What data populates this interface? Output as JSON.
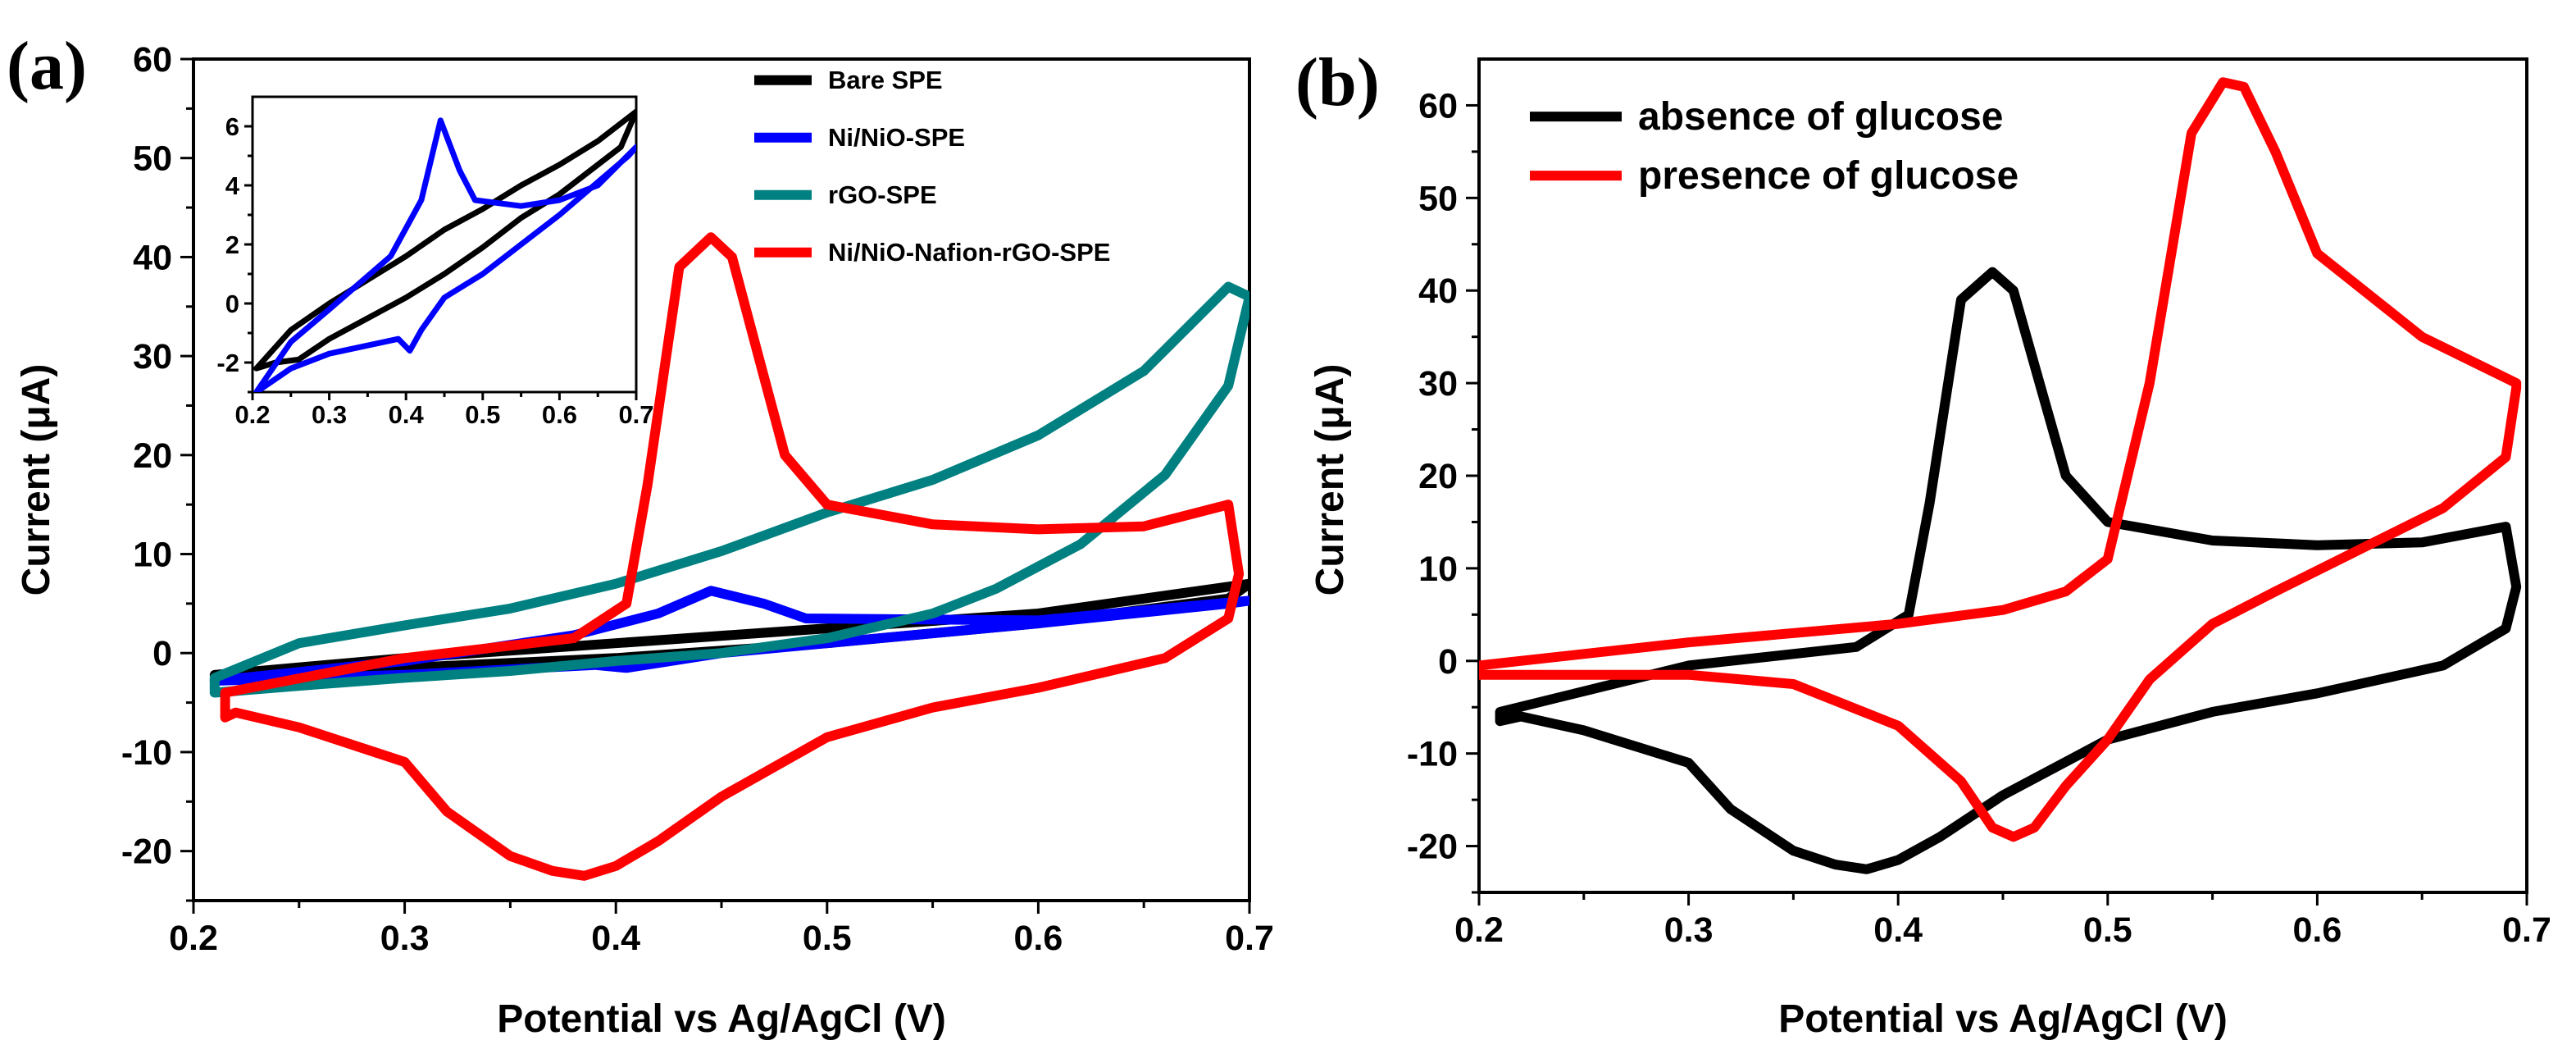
{
  "chart_data": [
    {
      "panel": "(a)",
      "type": "line",
      "xlabel": "Potential vs Ag/AgCl (V)",
      "ylabel": "Current (μA)",
      "xlim": [
        0.2,
        0.7
      ],
      "ylim": [
        -25,
        60
      ],
      "xticks": [
        "0.2",
        "0.3",
        "0.4",
        "0.5",
        "0.6",
        "0.7"
      ],
      "yticks": [
        "-20",
        "-10",
        "0",
        "10",
        "20",
        "30",
        "40",
        "50",
        "60"
      ],
      "legend_position": "top-right",
      "series": [
        {
          "name": "Bare SPE",
          "color": "#000000",
          "x": [
            0.21,
            0.3,
            0.4,
            0.5,
            0.6,
            0.7,
            0.69,
            0.6,
            0.5,
            0.4,
            0.3,
            0.21
          ],
          "y": [
            -2.2,
            -0.5,
            1.0,
            2.5,
            4.0,
            7.0,
            5.5,
            3.0,
            1.0,
            -0.5,
            -1.5,
            -2.2
          ]
        },
        {
          "name": "Ni/NiO-SPE",
          "color": "#0000ff",
          "x": [
            0.21,
            0.3,
            0.38,
            0.42,
            0.445,
            0.47,
            0.49,
            0.6,
            0.7,
            0.69,
            0.6,
            0.5,
            0.45,
            0.42,
            0.405,
            0.39,
            0.3,
            0.21
          ],
          "y": [
            -2.8,
            -0.8,
            1.8,
            4.0,
            6.3,
            5.0,
            3.5,
            3.3,
            5.3,
            5.0,
            3.0,
            1.0,
            0.0,
            -1.0,
            -1.5,
            -1.2,
            -2.2,
            -2.8
          ]
        },
        {
          "name": "rGO-SPE",
          "color": "#008080",
          "x": [
            0.21,
            0.25,
            0.3,
            0.35,
            0.4,
            0.45,
            0.5,
            0.55,
            0.6,
            0.65,
            0.69,
            0.7,
            0.69,
            0.66,
            0.62,
            0.58,
            0.55,
            0.5,
            0.45,
            0.4,
            0.35,
            0.3,
            0.25,
            0.21
          ],
          "y": [
            -2.5,
            1.0,
            2.8,
            4.5,
            7.0,
            10.3,
            14.2,
            17.5,
            22.0,
            28.5,
            37.0,
            36.0,
            27.0,
            18.0,
            11.0,
            6.5,
            4.0,
            1.5,
            0.0,
            -0.8,
            -1.8,
            -2.5,
            -3.3,
            -4.0
          ]
        },
        {
          "name": "Ni/NiO-Nafion-rGO-SPE",
          "color": "#ff0000",
          "x": [
            0.215,
            0.3,
            0.38,
            0.405,
            0.415,
            0.43,
            0.445,
            0.455,
            0.47,
            0.48,
            0.5,
            0.55,
            0.6,
            0.65,
            0.69,
            0.695,
            0.69,
            0.66,
            0.6,
            0.55,
            0.5,
            0.45,
            0.42,
            0.4,
            0.385,
            0.37,
            0.35,
            0.32,
            0.3,
            0.25,
            0.22,
            0.215
          ],
          "y": [
            -4.0,
            -0.5,
            1.5,
            5.0,
            17.0,
            39.0,
            42.0,
            40.0,
            28.0,
            20.0,
            15.0,
            13.0,
            12.5,
            12.8,
            15.0,
            8.0,
            3.5,
            -0.5,
            -3.5,
            -5.5,
            -8.5,
            -14.5,
            -19.0,
            -21.5,
            -22.5,
            -22.0,
            -20.5,
            -16.0,
            -11.0,
            -7.5,
            -6.0,
            -6.5
          ]
        }
      ],
      "inset": {
        "xlim": [
          0.2,
          0.7
        ],
        "ylim": [
          -3,
          7
        ],
        "xticks": [
          "0.2",
          "0.3",
          "0.4",
          "0.5",
          "0.6",
          "0.7"
        ],
        "yticks": [
          "-2",
          "0",
          "2",
          "4",
          "6"
        ],
        "series": [
          {
            "name": "Bare SPE",
            "color": "#000000",
            "x": [
              0.205,
              0.25,
              0.3,
              0.35,
              0.4,
              0.45,
              0.5,
              0.55,
              0.6,
              0.65,
              0.7,
              0.68,
              0.6,
              0.55,
              0.5,
              0.45,
              0.4,
              0.35,
              0.3,
              0.26,
              0.23,
              0.205
            ],
            "y": [
              -2.2,
              -0.9,
              0.0,
              0.8,
              1.6,
              2.5,
              3.2,
              4.0,
              4.7,
              5.5,
              6.5,
              5.3,
              3.7,
              2.9,
              1.9,
              1.0,
              0.2,
              -0.5,
              -1.2,
              -1.9,
              -2.0,
              -2.2
            ]
          },
          {
            "name": "Ni/NiO-SPE",
            "color": "#0000ff",
            "x": [
              0.205,
              0.25,
              0.3,
              0.38,
              0.42,
              0.445,
              0.47,
              0.49,
              0.55,
              0.6,
              0.65,
              0.7,
              0.69,
              0.6,
              0.5,
              0.45,
              0.42,
              0.405,
              0.39,
              0.3,
              0.25,
              0.205
            ],
            "y": [
              -3.0,
              -1.3,
              -0.2,
              1.6,
              3.5,
              6.2,
              4.5,
              3.5,
              3.3,
              3.5,
              4.0,
              5.3,
              5.0,
              3.0,
              1.0,
              0.2,
              -0.9,
              -1.6,
              -1.2,
              -1.7,
              -2.2,
              -3.0
            ]
          }
        ]
      }
    },
    {
      "panel": "(b)",
      "type": "line",
      "xlabel": "Potential vs Ag/AgCl (V)",
      "ylabel": "Current (μA)",
      "xlim": [
        0.2,
        0.7
      ],
      "ylim": [
        -25,
        65
      ],
      "xticks": [
        "0.2",
        "0.3",
        "0.4",
        "0.5",
        "0.6",
        "0.7"
      ],
      "yticks": [
        "-20",
        "-10",
        "0",
        "10",
        "20",
        "30",
        "40",
        "50",
        "60"
      ],
      "legend_position": "top-left",
      "series": [
        {
          "name": "absence of glucose",
          "color": "#000000",
          "x": [
            0.21,
            0.3,
            0.38,
            0.405,
            0.415,
            0.43,
            0.445,
            0.455,
            0.47,
            0.48,
            0.5,
            0.55,
            0.6,
            0.65,
            0.69,
            0.695,
            0.69,
            0.66,
            0.6,
            0.55,
            0.5,
            0.45,
            0.42,
            0.4,
            0.385,
            0.37,
            0.35,
            0.32,
            0.3,
            0.25,
            0.22,
            0.21
          ],
          "y": [
            -5.5,
            -0.5,
            1.5,
            5.0,
            17.0,
            39.0,
            42.0,
            40.0,
            28.0,
            20.0,
            15.0,
            13.0,
            12.5,
            12.8,
            14.5,
            8.0,
            3.5,
            -0.5,
            -3.5,
            -5.5,
            -8.5,
            -14.5,
            -19.0,
            -21.5,
            -22.5,
            -22.0,
            -20.5,
            -16.0,
            -11.0,
            -7.5,
            -6.0,
            -6.5
          ]
        },
        {
          "name": "presence of glucose",
          "color": "#ff0000",
          "x": [
            0.2,
            0.3,
            0.4,
            0.45,
            0.48,
            0.5,
            0.52,
            0.54,
            0.555,
            0.565,
            0.58,
            0.6,
            0.65,
            0.695,
            0.695,
            0.69,
            0.66,
            0.62,
            0.58,
            0.55,
            0.52,
            0.5,
            0.48,
            0.465,
            0.455,
            0.445,
            0.43,
            0.4,
            0.35,
            0.3,
            0.25,
            0.2
          ],
          "y": [
            -0.5,
            2.0,
            4.0,
            5.5,
            7.5,
            11.0,
            30.0,
            57.0,
            62.5,
            62.0,
            55.0,
            44.0,
            35.0,
            30.0,
            29.5,
            22.0,
            16.5,
            12.0,
            7.5,
            4.0,
            -2.0,
            -8.5,
            -13.5,
            -18.0,
            -19.0,
            -18.0,
            -13.0,
            -7.0,
            -2.5,
            -1.5,
            -1.5,
            -1.5
          ]
        }
      ]
    }
  ]
}
